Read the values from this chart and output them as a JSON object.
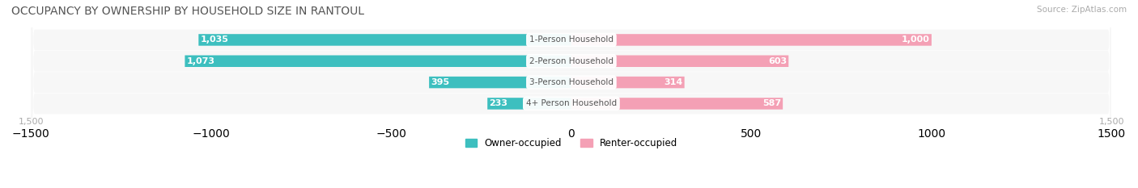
{
  "title": "OCCUPANCY BY OWNERSHIP BY HOUSEHOLD SIZE IN RANTOUL",
  "source": "Source: ZipAtlas.com",
  "categories": [
    "1-Person Household",
    "2-Person Household",
    "3-Person Household",
    "4+ Person Household"
  ],
  "owner_values": [
    1035,
    1073,
    395,
    233
  ],
  "renter_values": [
    1000,
    603,
    314,
    587
  ],
  "max_val": 1500,
  "owner_color": "#3dbfbf",
  "renter_color": "#f4a0b5",
  "owner_color_dark": "#2aacac",
  "renter_color_dark": "#f090a5",
  "bar_bg": "#f0f0f0",
  "label_color_owner_large": "#ffffff",
  "label_color_owner_small": "#666666",
  "label_color_renter_large": "#ffffff",
  "label_color_renter_small": "#666666",
  "center_label_color": "#555555",
  "title_color": "#555555",
  "axis_label_color": "#aaaaaa",
  "legend_owner": "Owner-occupied",
  "legend_renter": "Renter-occupied",
  "background_color": "#ffffff",
  "row_bg": "#f7f7f7",
  "bar_height": 0.55
}
